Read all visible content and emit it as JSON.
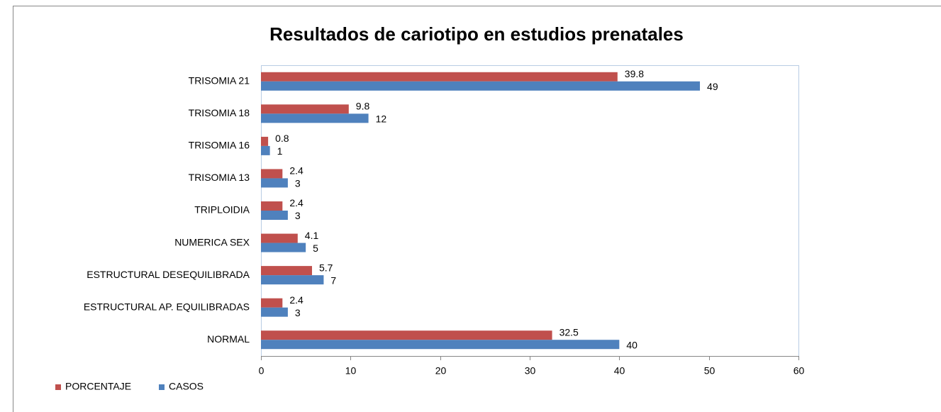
{
  "chart_data": {
    "type": "hbar",
    "title": "Resultados de cariotipo en estudios prenatales",
    "categories": [
      "TRISOMIA 21",
      "TRISOMIA 18",
      "TRISOMIA 16",
      "TRISOMIA 13",
      "TRIPLOIDIA",
      "NUMERICA SEX",
      "ESTRUCTURAL DESEQUILIBRADA",
      "ESTRUCTURAL AP. EQUILIBRADAS",
      "NORMAL"
    ],
    "series": [
      {
        "name": "PORCENTAJE",
        "color": "#c0504d",
        "values": [
          39.8,
          9.8,
          0.8,
          2.4,
          2.4,
          4.1,
          5.7,
          2.4,
          32.5
        ]
      },
      {
        "name": "CASOS",
        "color": "#4f81bd",
        "values": [
          49,
          12,
          1,
          3,
          3,
          5,
          7,
          3,
          40
        ]
      }
    ],
    "xlim": [
      0,
      60
    ],
    "xticks": [
      0,
      10,
      20,
      30,
      40,
      50,
      60
    ],
    "grid": false,
    "legend": "bottom-left"
  }
}
